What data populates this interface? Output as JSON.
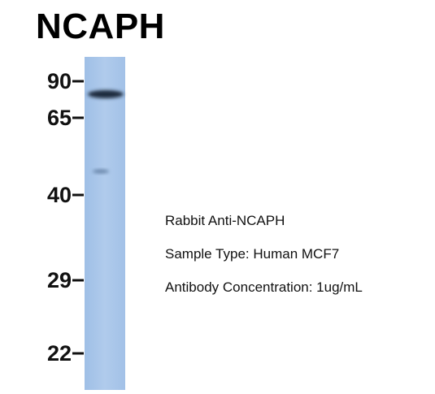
{
  "title": "NCAPH",
  "markers": [
    "90",
    "65",
    "40",
    "29",
    "22"
  ],
  "info": [
    "Rabbit Anti-NCAPH",
    "Sample Type: Human MCF7",
    "Antibody Concentration: 1ug/mL"
  ]
}
